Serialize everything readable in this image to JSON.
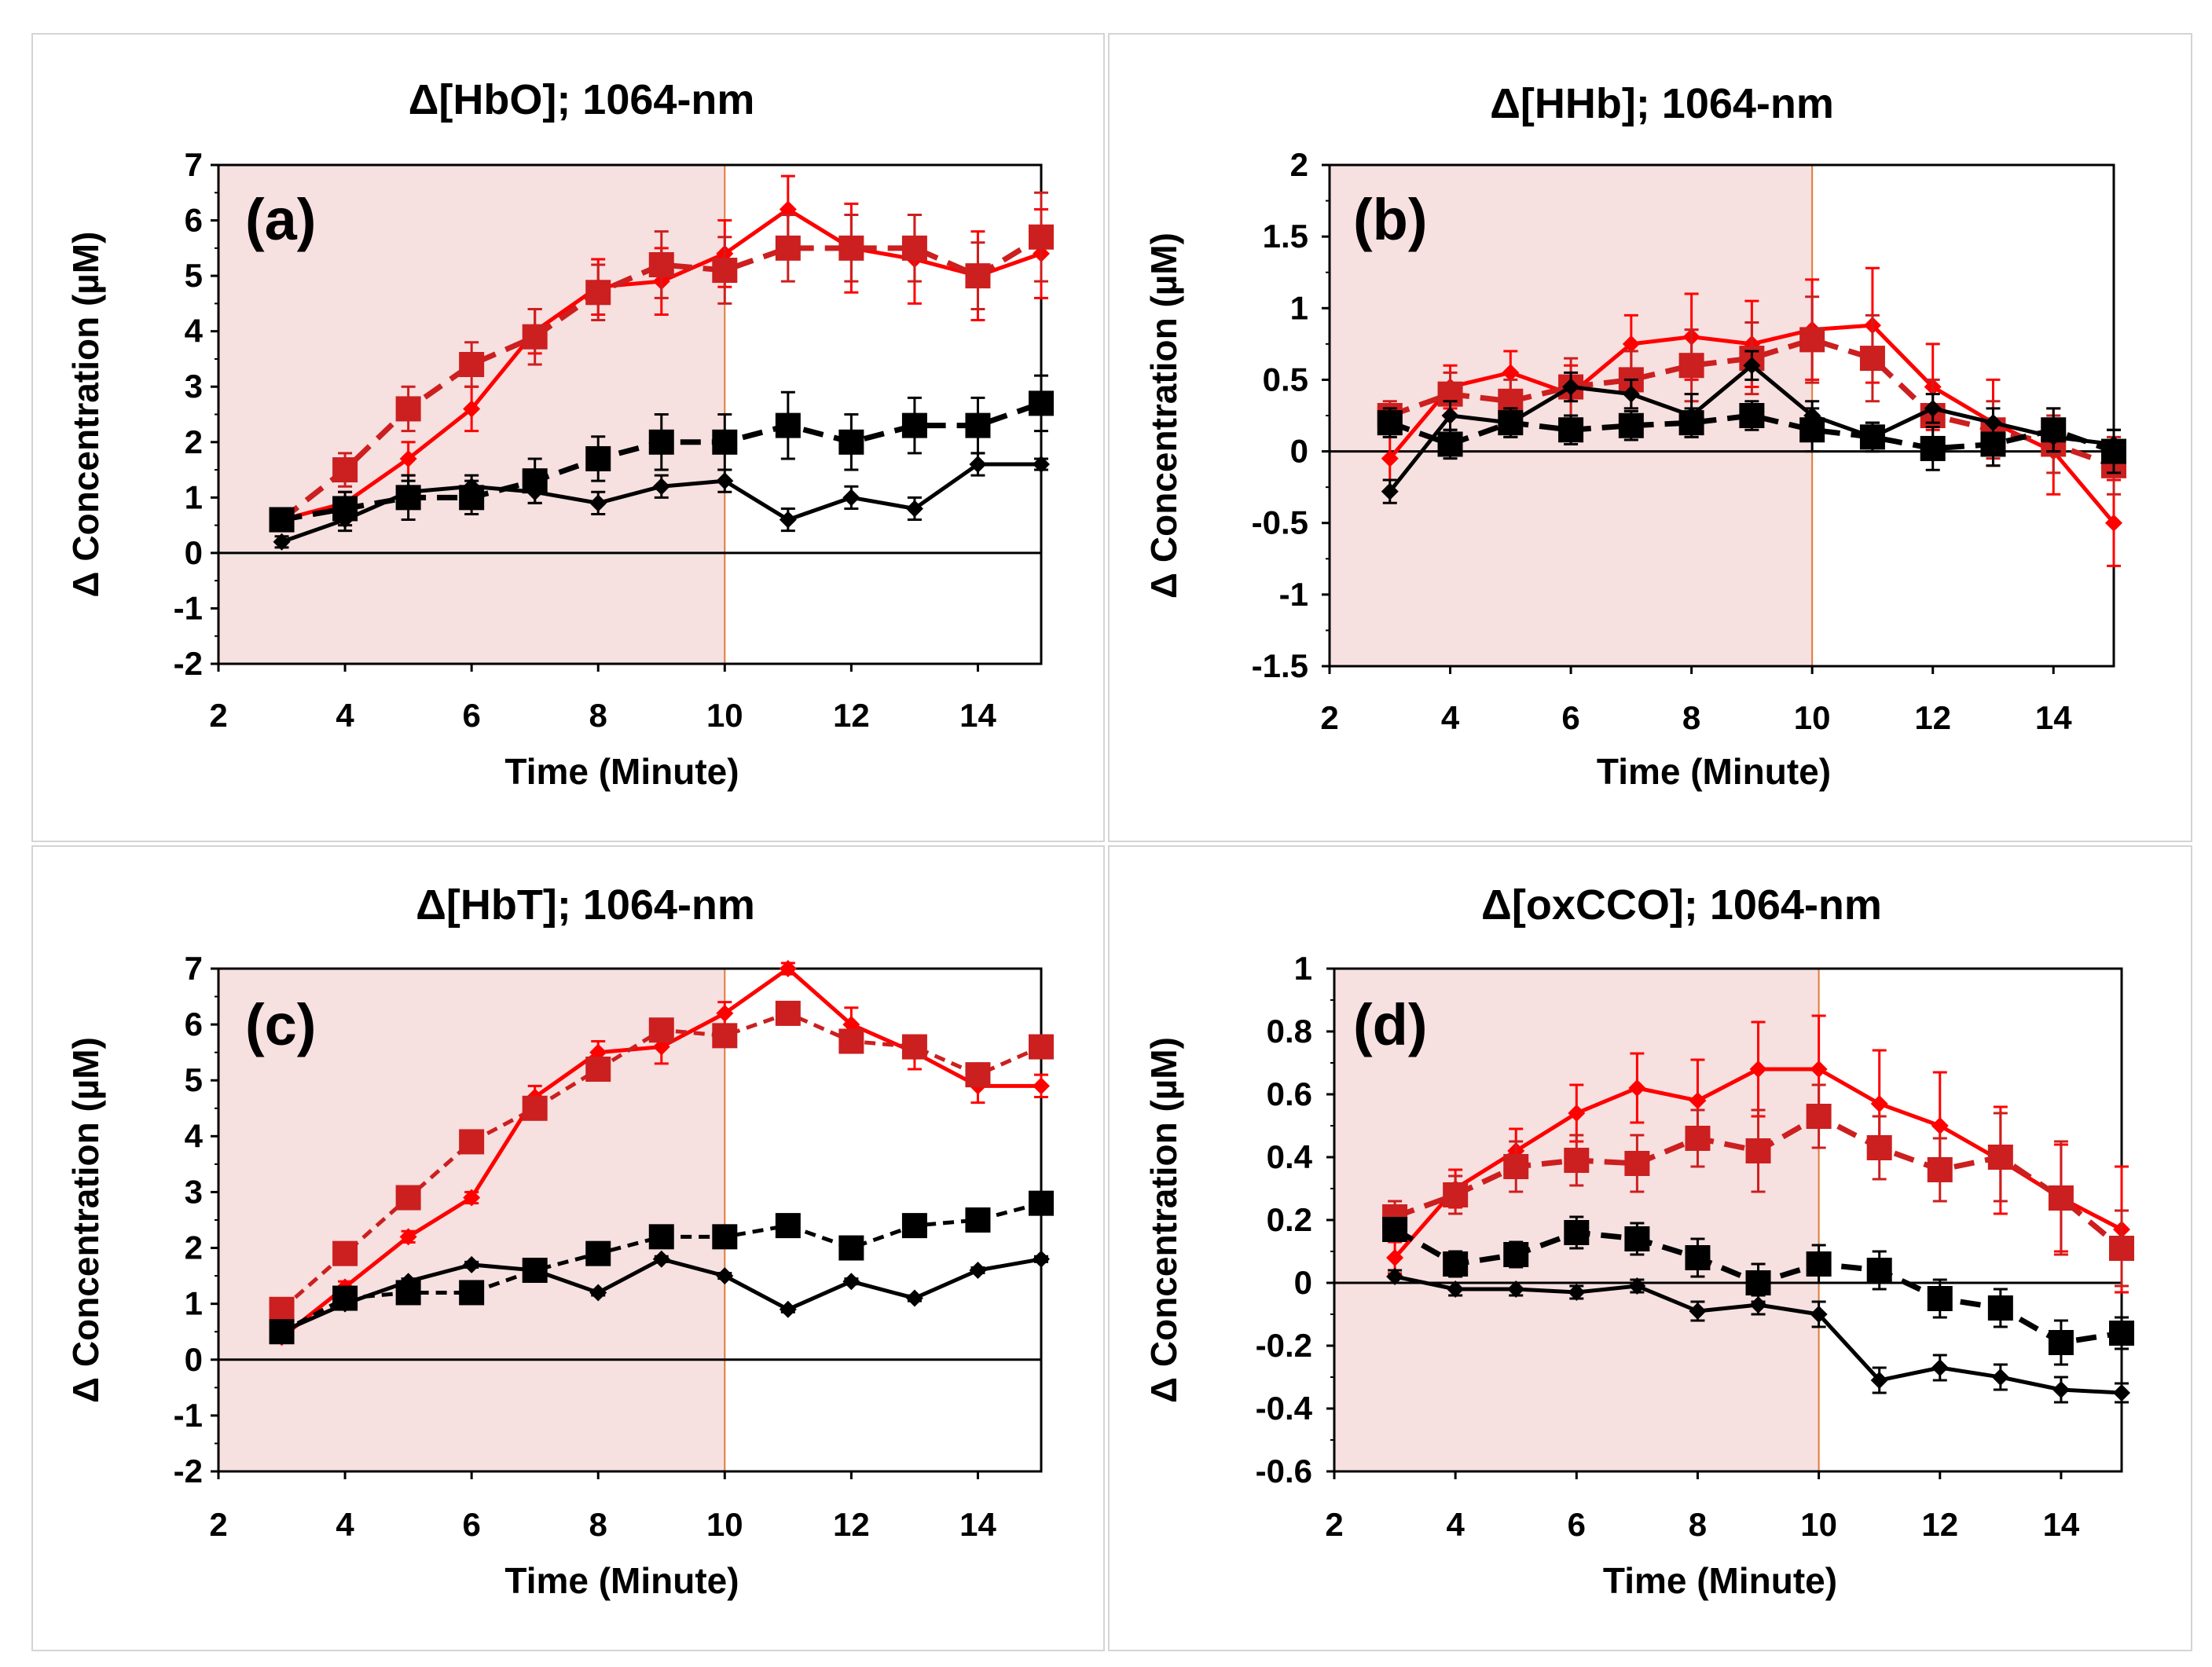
{
  "colors": {
    "shade": "#f7e0e0",
    "shade_edge": "#e07b39",
    "red": "#ff0000",
    "dark_red": "#cc1f1f",
    "black": "#000000"
  },
  "chart_data": [
    {
      "type": "line",
      "panel_label": "(a)",
      "title": "Δ[HbO]; 1064-nm",
      "xlabel": "Time (Minute)",
      "ylabel": "Δ Concentration (µM)",
      "xlim": [
        2,
        15
      ],
      "xticks": [
        2,
        4,
        6,
        8,
        10,
        12,
        14
      ],
      "ylim": [
        -2,
        7
      ],
      "yticks": [
        -2,
        -1,
        0,
        1,
        2,
        3,
        4,
        5,
        6,
        7
      ],
      "shade_x": [
        2,
        10
      ],
      "x": [
        3,
        4,
        5,
        6,
        7,
        8,
        9,
        10,
        11,
        12,
        13,
        14,
        15
      ],
      "series": [
        {
          "name": "red-diamond-solid",
          "color": "#ff0000",
          "dash": "none",
          "marker": "diamond",
          "values": [
            0.6,
            0.9,
            1.7,
            2.6,
            4.0,
            4.8,
            4.9,
            5.4,
            6.2,
            5.5,
            5.3,
            5.0,
            5.4
          ],
          "errors": [
            0.2,
            0.2,
            0.3,
            0.4,
            0.4,
            0.5,
            0.6,
            0.6,
            0.6,
            0.8,
            0.8,
            0.8,
            0.8
          ]
        },
        {
          "name": "red-square-dashed",
          "color": "#cc1f1f",
          "dash": "long",
          "marker": "square",
          "values": [
            0.6,
            1.5,
            2.6,
            3.4,
            3.9,
            4.7,
            5.2,
            5.1,
            5.5,
            5.5,
            5.5,
            5.0,
            5.7
          ],
          "errors": [
            0.2,
            0.3,
            0.4,
            0.4,
            0.5,
            0.5,
            0.6,
            0.6,
            0.6,
            0.6,
            0.6,
            0.6,
            0.8
          ]
        },
        {
          "name": "black-diamond-solid",
          "color": "#000000",
          "dash": "none",
          "marker": "diamond",
          "values": [
            0.2,
            0.6,
            1.1,
            1.2,
            1.1,
            0.9,
            1.2,
            1.3,
            0.6,
            1.0,
            0.8,
            1.6,
            1.6
          ],
          "errors": [
            0.1,
            0.2,
            0.2,
            0.2,
            0.2,
            0.2,
            0.2,
            0.2,
            0.2,
            0.2,
            0.2,
            0.2,
            0.1
          ]
        },
        {
          "name": "black-square-dashed",
          "color": "#000000",
          "dash": "long",
          "marker": "square",
          "values": [
            0.6,
            0.8,
            1.0,
            1.0,
            1.3,
            1.7,
            2.0,
            2.0,
            2.3,
            2.0,
            2.3,
            2.3,
            2.7
          ],
          "errors": [
            0.2,
            0.3,
            0.4,
            0.3,
            0.4,
            0.4,
            0.5,
            0.5,
            0.6,
            0.5,
            0.5,
            0.5,
            0.5
          ]
        }
      ]
    },
    {
      "type": "line",
      "panel_label": "(b)",
      "title": "Δ[HHb]; 1064-nm",
      "xlabel": "Time (Minute)",
      "ylabel": "Δ Concentration (µM)",
      "xlim": [
        2,
        15
      ],
      "xticks": [
        2,
        4,
        6,
        8,
        10,
        12,
        14
      ],
      "ylim": [
        -1.5,
        2
      ],
      "yticks": [
        -1.5,
        -1,
        -0.5,
        0,
        0.5,
        1,
        1.5,
        2
      ],
      "shade_x": [
        2,
        10
      ],
      "x": [
        3,
        4,
        5,
        6,
        7,
        8,
        9,
        10,
        11,
        12,
        13,
        14,
        15
      ],
      "series": [
        {
          "name": "red-diamond-solid",
          "color": "#ff0000",
          "dash": "none",
          "marker": "diamond",
          "values": [
            -0.05,
            0.45,
            0.55,
            0.4,
            0.75,
            0.8,
            0.75,
            0.85,
            0.88,
            0.45,
            0.2,
            0.0,
            -0.5
          ],
          "errors": [
            0.15,
            0.15,
            0.15,
            0.2,
            0.2,
            0.3,
            0.3,
            0.35,
            0.4,
            0.3,
            0.3,
            0.3,
            0.3
          ]
        },
        {
          "name": "red-square-dashed",
          "color": "#cc1f1f",
          "dash": "long",
          "marker": "square",
          "values": [
            0.25,
            0.4,
            0.35,
            0.45,
            0.5,
            0.6,
            0.65,
            0.78,
            0.65,
            0.25,
            0.15,
            0.05,
            -0.1
          ],
          "errors": [
            0.1,
            0.15,
            0.15,
            0.2,
            0.2,
            0.25,
            0.25,
            0.3,
            0.3,
            0.25,
            0.2,
            0.2,
            0.2
          ]
        },
        {
          "name": "black-diamond-solid",
          "color": "#000000",
          "dash": "none",
          "marker": "diamond",
          "values": [
            -0.28,
            0.25,
            0.2,
            0.45,
            0.4,
            0.25,
            0.6,
            0.25,
            0.1,
            0.3,
            0.2,
            0.1,
            0.05
          ],
          "errors": [
            0.08,
            0.1,
            0.1,
            0.1,
            0.1,
            0.15,
            0.1,
            0.1,
            0.1,
            0.1,
            0.1,
            0.1,
            0.1
          ]
        },
        {
          "name": "black-square-dashed",
          "color": "#000000",
          "dash": "long",
          "marker": "square",
          "values": [
            0.2,
            0.05,
            0.2,
            0.15,
            0.18,
            0.2,
            0.25,
            0.15,
            0.1,
            0.02,
            0.05,
            0.15,
            0.0
          ],
          "errors": [
            0.1,
            0.1,
            0.1,
            0.1,
            0.1,
            0.1,
            0.1,
            0.15,
            0.1,
            0.15,
            0.15,
            0.15,
            0.15
          ]
        }
      ]
    },
    {
      "type": "line",
      "panel_label": "(c)",
      "title": "Δ[HbT]; 1064-nm",
      "xlabel": "Time (Minute)",
      "ylabel": "Δ Concentration (µM)",
      "xlim": [
        2,
        15
      ],
      "xticks": [
        2,
        4,
        6,
        8,
        10,
        12,
        14
      ],
      "ylim": [
        -2,
        7
      ],
      "yticks": [
        -2,
        -1,
        0,
        1,
        2,
        3,
        4,
        5,
        6,
        7
      ],
      "shade_x": [
        2,
        10
      ],
      "x": [
        3,
        4,
        5,
        6,
        7,
        8,
        9,
        10,
        11,
        12,
        13,
        14,
        15
      ],
      "series": [
        {
          "name": "red-diamond-solid",
          "color": "#ff0000",
          "dash": "none",
          "marker": "diamond",
          "values": [
            0.4,
            1.3,
            2.2,
            2.9,
            4.7,
            5.5,
            5.6,
            6.2,
            7.0,
            6.0,
            5.5,
            4.9,
            4.9
          ],
          "errors": [
            0.1,
            0.1,
            0.1,
            0.1,
            0.2,
            0.2,
            0.3,
            0.2,
            0.1,
            0.3,
            0.3,
            0.3,
            0.2
          ]
        },
        {
          "name": "red-square-dashed",
          "color": "#cc1f1f",
          "dash": "short",
          "marker": "square",
          "values": [
            0.9,
            1.9,
            2.9,
            3.9,
            4.5,
            5.2,
            5.9,
            5.8,
            6.2,
            5.7,
            5.6,
            5.1,
            5.6
          ],
          "errors": [
            0.1,
            0.1,
            0.1,
            0.1,
            0.2,
            0.2,
            0.2,
            0.2,
            0.2,
            0.2,
            0.2,
            0.2,
            0.2
          ]
        },
        {
          "name": "black-diamond-solid",
          "color": "#000000",
          "dash": "none",
          "marker": "diamond",
          "values": [
            0.5,
            1.0,
            1.4,
            1.7,
            1.6,
            1.2,
            1.8,
            1.5,
            0.9,
            1.4,
            1.1,
            1.6,
            1.8
          ],
          "errors": [
            0.05,
            0.05,
            0.05,
            0.05,
            0.05,
            0.05,
            0.05,
            0.05,
            0.05,
            0.05,
            0.05,
            0.05,
            0.05
          ]
        },
        {
          "name": "black-square-dashed",
          "color": "#000000",
          "dash": "short",
          "marker": "square",
          "values": [
            0.5,
            1.1,
            1.2,
            1.2,
            1.6,
            1.9,
            2.2,
            2.2,
            2.4,
            2.0,
            2.4,
            2.5,
            2.8
          ],
          "errors": [
            0.05,
            0.05,
            0.05,
            0.05,
            0.05,
            0.05,
            0.1,
            0.1,
            0.1,
            0.1,
            0.1,
            0.1,
            0.1
          ]
        }
      ]
    },
    {
      "type": "line",
      "panel_label": "(d)",
      "title": "Δ[oxCCO]; 1064-nm",
      "xlabel": "Time (Minute)",
      "ylabel": "Δ Concentration (µM)",
      "xlim": [
        2,
        15
      ],
      "xticks": [
        2,
        4,
        6,
        8,
        10,
        12,
        14
      ],
      "ylim": [
        -0.6,
        1
      ],
      "yticks": [
        -0.6,
        -0.4,
        -0.2,
        0,
        0.2,
        0.4,
        0.6,
        0.8,
        1
      ],
      "ytick_labels": [
        "-0.6",
        "-0.4",
        "-0.2",
        "0",
        "0.2",
        "0.4",
        "0.6",
        "0.8",
        "1"
      ],
      "shade_x": [
        2,
        10
      ],
      "x": [
        3,
        4,
        5,
        6,
        7,
        8,
        9,
        10,
        11,
        12,
        13,
        14,
        15
      ],
      "series": [
        {
          "name": "red-diamond-solid",
          "color": "#ff0000",
          "dash": "none",
          "marker": "diamond",
          "values": [
            0.08,
            0.3,
            0.42,
            0.54,
            0.62,
            0.58,
            0.68,
            0.68,
            0.57,
            0.5,
            0.39,
            0.27,
            0.17
          ],
          "errors": [
            0.05,
            0.06,
            0.07,
            0.09,
            0.11,
            0.13,
            0.15,
            0.17,
            0.17,
            0.17,
            0.17,
            0.17,
            0.2
          ]
        },
        {
          "name": "red-square-dashed",
          "color": "#cc1f1f",
          "dash": "long",
          "marker": "square",
          "values": [
            0.21,
            0.28,
            0.37,
            0.39,
            0.38,
            0.46,
            0.42,
            0.53,
            0.43,
            0.36,
            0.4,
            0.27,
            0.11
          ],
          "errors": [
            0.05,
            0.06,
            0.08,
            0.08,
            0.09,
            0.09,
            0.13,
            0.1,
            0.1,
            0.1,
            0.14,
            0.18,
            0.12
          ]
        },
        {
          "name": "black-diamond-solid",
          "color": "#000000",
          "dash": "none",
          "marker": "diamond",
          "values": [
            0.02,
            -0.02,
            -0.02,
            -0.03,
            -0.01,
            -0.09,
            -0.07,
            -0.1,
            -0.31,
            -0.27,
            -0.3,
            -0.34,
            -0.35
          ],
          "errors": [
            0.02,
            0.02,
            0.02,
            0.02,
            0.02,
            0.03,
            0.03,
            0.04,
            0.04,
            0.04,
            0.04,
            0.04,
            0.03
          ]
        },
        {
          "name": "black-square-dashed",
          "color": "#000000",
          "dash": "long",
          "marker": "square",
          "values": [
            0.17,
            0.06,
            0.09,
            0.16,
            0.14,
            0.08,
            0.0,
            0.06,
            0.04,
            -0.05,
            -0.08,
            -0.19,
            -0.16
          ],
          "errors": [
            0.03,
            0.04,
            0.04,
            0.05,
            0.05,
            0.06,
            0.06,
            0.06,
            0.06,
            0.06,
            0.06,
            0.07,
            0.05
          ]
        }
      ]
    }
  ]
}
